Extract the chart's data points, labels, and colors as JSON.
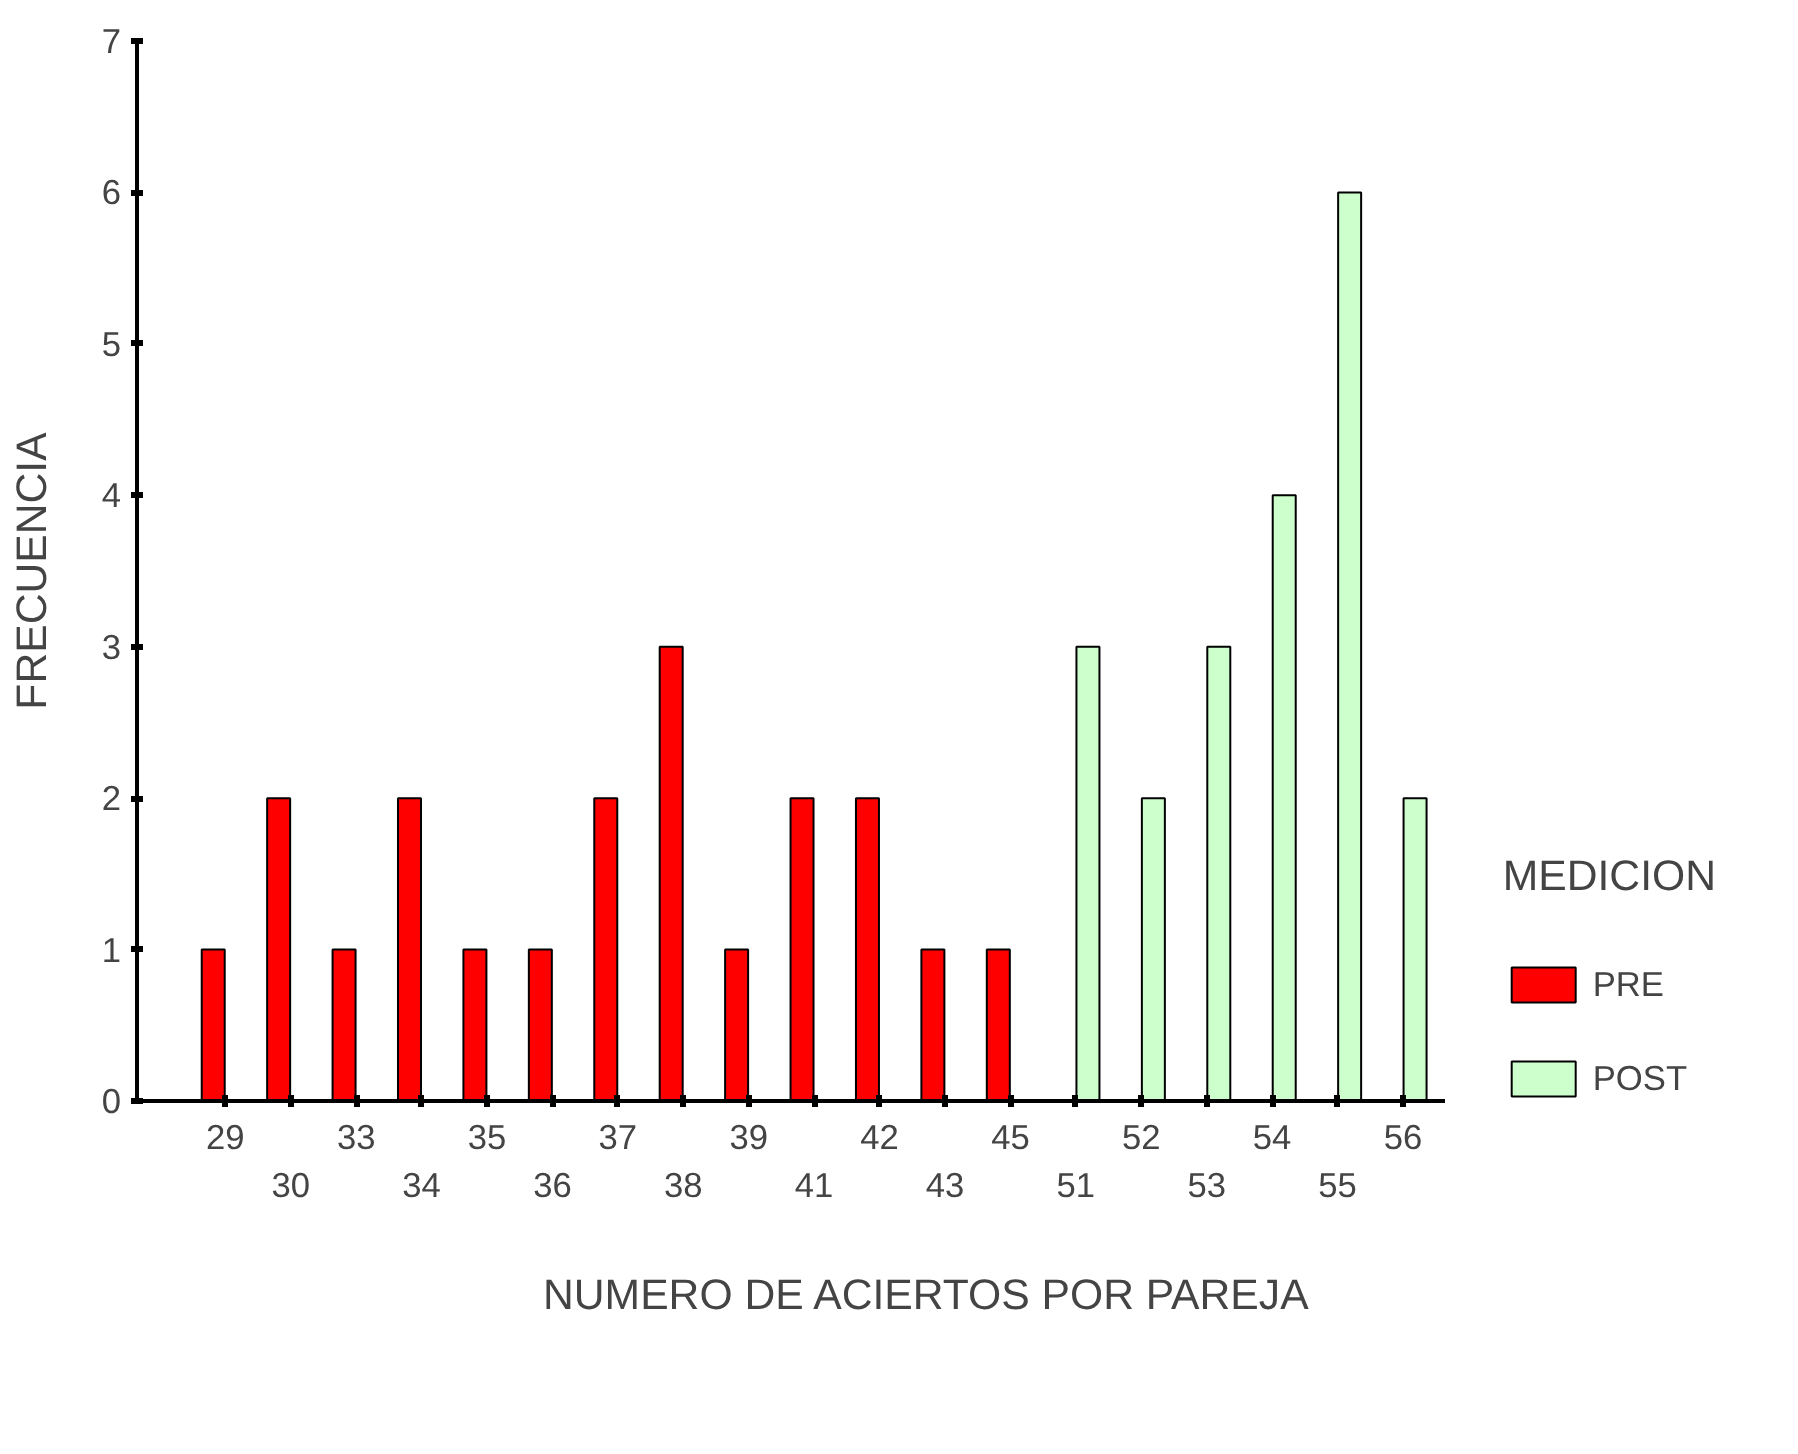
{
  "chart_data": {
    "type": "bar",
    "xlabel": "NUMERO DE ACIERTOS POR PAREJA",
    "ylabel": "FRECUENCIA",
    "legend_title": "MEDICION",
    "categories": [
      "29",
      "30",
      "33",
      "34",
      "35",
      "36",
      "37",
      "38",
      "39",
      "41",
      "42",
      "43",
      "45",
      "51",
      "52",
      "53",
      "54",
      "55",
      "56"
    ],
    "series": [
      {
        "name": "PRE",
        "color": "#ff0000",
        "values": [
          1,
          2,
          1,
          2,
          1,
          1,
          2,
          3,
          1,
          2,
          2,
          1,
          1,
          null,
          null,
          null,
          null,
          null,
          null
        ]
      },
      {
        "name": "POST",
        "color": "#ccffcc",
        "values": [
          null,
          null,
          null,
          null,
          null,
          null,
          null,
          null,
          null,
          null,
          null,
          null,
          null,
          3,
          2,
          3,
          4,
          6,
          2
        ]
      }
    ],
    "ylim": [
      0,
      7
    ],
    "yticks": [
      0,
      1,
      2,
      3,
      4,
      5,
      6,
      7
    ],
    "grid": false,
    "legend": "right"
  }
}
